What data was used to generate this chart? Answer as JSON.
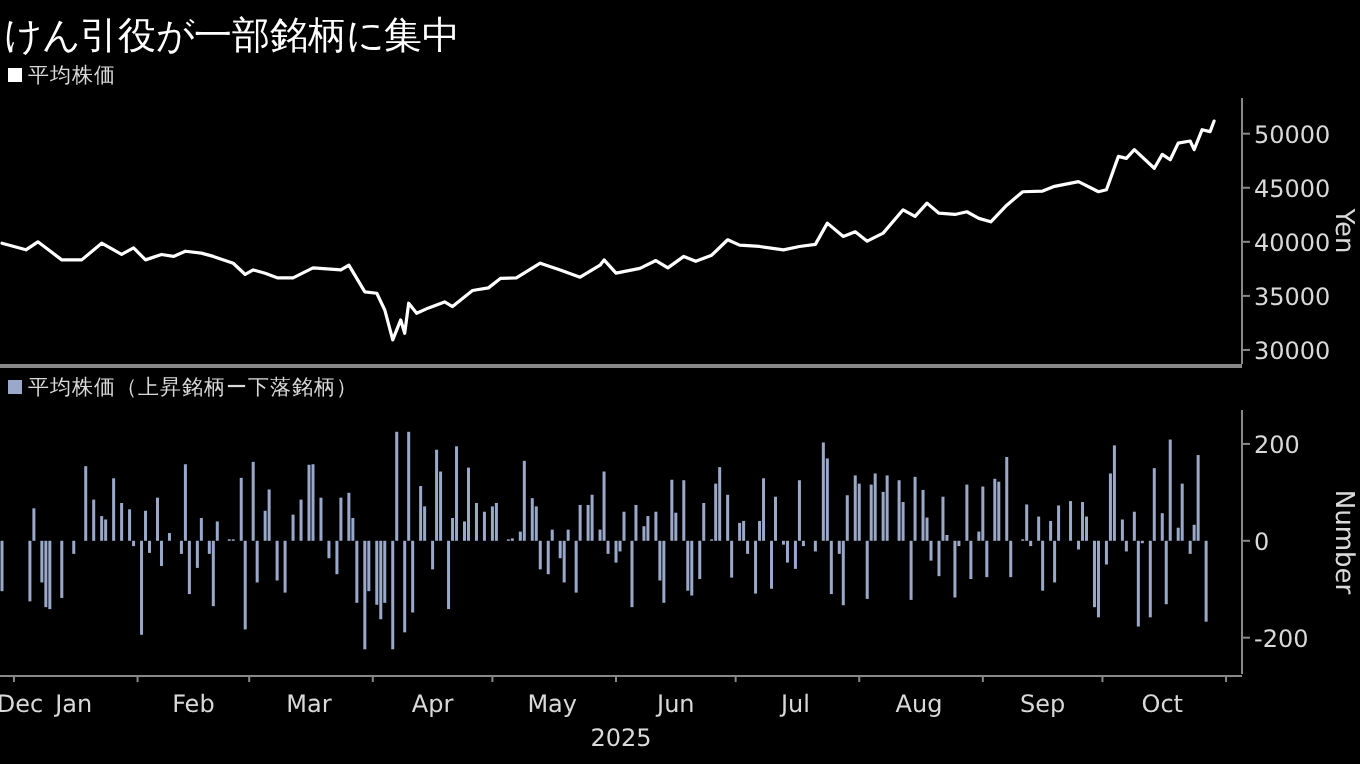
{
  "chart_data": [
    {
      "type": "line",
      "title": "けん引役が一部銘柄に集中",
      "ylabel": "Yen",
      "legend": "top left",
      "tick_labels": "y",
      "xlim": [
        "2024-12-28T12:00",
        "2025-11-05"
      ],
      "ylim": [
        28700,
        53300
      ],
      "yticks": [
        30000,
        35000,
        40000,
        45000,
        50000
      ],
      "series": [
        {
          "name": "平均株価",
          "color": "#ffffff",
          "x": [
            "2024-12-29",
            "2025-01-04",
            "2025-01-07",
            "2025-01-13",
            "2025-01-18",
            "2025-01-23",
            "2025-01-28",
            "2025-01-31",
            "2025-02-03",
            "2025-02-07",
            "2025-02-10",
            "2025-02-13",
            "2025-02-17",
            "2025-02-20",
            "2025-02-25",
            "2025-02-28",
            "2025-03-02",
            "2025-03-05",
            "2025-03-08",
            "2025-03-12",
            "2025-03-17",
            "2025-03-24",
            "2025-03-26",
            "2025-03-30",
            "2025-04-02",
            "2025-04-04",
            "2025-04-06",
            "2025-04-08",
            "2025-04-09",
            "2025-04-10",
            "2025-04-12",
            "2025-04-15",
            "2025-04-19",
            "2025-04-21",
            "2025-04-26",
            "2025-04-30",
            "2025-05-03",
            "2025-05-07",
            "2025-05-13",
            "2025-05-18",
            "2025-05-23",
            "2025-05-28",
            "2025-05-29",
            "2025-06-01",
            "2025-06-07",
            "2025-06-11",
            "2025-06-14",
            "2025-06-18",
            "2025-06-21",
            "2025-06-25",
            "2025-06-29",
            "2025-07-02",
            "2025-07-07",
            "2025-07-13",
            "2025-07-17",
            "2025-07-21",
            "2025-07-24",
            "2025-07-28",
            "2025-07-31",
            "2025-08-03",
            "2025-08-07",
            "2025-08-12",
            "2025-08-15",
            "2025-08-18",
            "2025-08-21",
            "2025-08-25",
            "2025-08-28",
            "2025-08-31",
            "2025-09-03",
            "2025-09-07",
            "2025-09-11",
            "2025-09-16",
            "2025-09-19",
            "2025-09-25",
            "2025-09-30",
            "2025-10-02",
            "2025-10-05",
            "2025-10-07",
            "2025-10-09",
            "2025-10-14",
            "2025-10-16",
            "2025-10-18",
            "2025-10-20",
            "2025-10-23",
            "2025-10-24",
            "2025-10-26",
            "2025-10-28",
            "2025-10-29"
          ],
          "values": [
            39870,
            39260,
            40000,
            38330,
            38330,
            39870,
            38830,
            39440,
            38330,
            38830,
            38650,
            39130,
            38950,
            38650,
            38020,
            36980,
            37400,
            37100,
            36670,
            36670,
            37590,
            37400,
            37840,
            35370,
            35240,
            33700,
            30930,
            32780,
            31540,
            34320,
            33390,
            33890,
            34440,
            34010,
            35500,
            35740,
            36610,
            36670,
            38020,
            37400,
            36730,
            37840,
            38330,
            37100,
            37540,
            38270,
            37590,
            38650,
            38200,
            38760,
            40190,
            39690,
            39570,
            39260,
            39570,
            39760,
            41730,
            40500,
            40930,
            40060,
            40800,
            42960,
            42350,
            43580,
            42650,
            42530,
            42780,
            42170,
            41850,
            43390,
            44630,
            44690,
            45130,
            45560,
            44630,
            44820,
            47900,
            47720,
            48520,
            46800,
            48090,
            47590,
            49130,
            49320,
            48520,
            50370,
            50190,
            51170
          ]
        }
      ]
    },
    {
      "type": "bar",
      "xlabel": "2025",
      "ylabel": "Number",
      "legend": "top left",
      "xlim": [
        "2024-12-28T12:00",
        "2025-11-05"
      ],
      "ylim": [
        -275,
        270
      ],
      "xticks": [
        {
          "value": "2024-12-30",
          "label": "Dec"
        },
        {
          "value": "2025-01-01",
          "label": null
        },
        {
          "value": "2025-01-16",
          "label": "Jan"
        },
        {
          "value": "2025-02-01",
          "label": null
        },
        {
          "value": "2025-02-15",
          "label": "Feb"
        },
        {
          "value": "2025-03-01",
          "label": null
        },
        {
          "value": "2025-03-16",
          "label": "Mar"
        },
        {
          "value": "2025-04-01",
          "label": null
        },
        {
          "value": "2025-04-16",
          "label": "Apr"
        },
        {
          "value": "2025-05-01",
          "label": null
        },
        {
          "value": "2025-05-16",
          "label": "May"
        },
        {
          "value": "2025-06-01",
          "label": null
        },
        {
          "value": "2025-06-16",
          "label": "Jun"
        },
        {
          "value": "2025-07-01",
          "label": null
        },
        {
          "value": "2025-07-16",
          "label": "Jul"
        },
        {
          "value": "2025-08-01",
          "label": null
        },
        {
          "value": "2025-08-16",
          "label": "Aug"
        },
        {
          "value": "2025-09-01",
          "label": null
        },
        {
          "value": "2025-09-16",
          "label": "Sep"
        },
        {
          "value": "2025-10-01",
          "label": null
        },
        {
          "value": "2025-10-16",
          "label": "Oct"
        },
        {
          "value": "2025-11-01",
          "label": null
        }
      ],
      "yticks": [
        -200,
        0,
        200
      ],
      "series": [
        {
          "name": "平均株価（上昇銘柄ー下落銘柄）",
          "color": "#9aa9c9",
          "x": [
            "2024-12-29",
            "2025-01-05",
            "2025-01-06",
            "2025-01-08",
            "2025-01-09",
            "2025-01-10",
            "2025-01-13",
            "2025-01-16",
            "2025-01-19",
            "2025-01-21",
            "2025-01-23",
            "2025-01-24",
            "2025-01-26",
            "2025-01-28",
            "2025-01-30",
            "2025-01-31",
            "2025-02-02",
            "2025-02-03",
            "2025-02-04",
            "2025-02-06",
            "2025-02-07",
            "2025-02-09",
            "2025-02-12",
            "2025-02-13",
            "2025-02-14",
            "2025-02-16",
            "2025-02-17",
            "2025-02-19",
            "2025-02-20",
            "2025-02-21",
            "2025-02-24",
            "2025-02-25",
            "2025-02-27",
            "2025-02-28",
            "2025-03-02",
            "2025-03-03",
            "2025-03-05",
            "2025-03-06",
            "2025-03-08",
            "2025-03-10",
            "2025-03-12",
            "2025-03-14",
            "2025-03-16",
            "2025-03-17",
            "2025-03-19",
            "2025-03-21",
            "2025-03-23",
            "2025-03-24",
            "2025-03-26",
            "2025-03-27",
            "2025-03-28",
            "2025-03-30",
            "2025-03-31",
            "2025-04-02",
            "2025-04-03",
            "2025-04-04",
            "2025-04-06",
            "2025-04-07",
            "2025-04-09",
            "2025-04-10",
            "2025-04-11",
            "2025-04-13",
            "2025-04-14",
            "2025-04-16",
            "2025-04-17",
            "2025-04-18",
            "2025-04-20",
            "2025-04-21",
            "2025-04-22",
            "2025-04-24",
            "2025-04-25",
            "2025-04-27",
            "2025-04-29",
            "2025-05-01",
            "2025-05-02",
            "2025-05-05",
            "2025-05-06",
            "2025-05-08",
            "2025-05-09",
            "2025-05-11",
            "2025-05-12",
            "2025-05-13",
            "2025-05-15",
            "2025-05-16",
            "2025-05-18",
            "2025-05-19",
            "2025-05-20",
            "2025-05-22",
            "2025-05-23",
            "2025-05-25",
            "2025-05-26",
            "2025-05-28",
            "2025-05-29",
            "2025-05-30",
            "2025-06-01",
            "2025-06-02",
            "2025-06-03",
            "2025-06-05",
            "2025-06-06",
            "2025-06-08",
            "2025-06-09",
            "2025-06-11",
            "2025-06-12",
            "2025-06-13",
            "2025-06-15",
            "2025-06-16",
            "2025-06-18",
            "2025-06-19",
            "2025-06-20",
            "2025-06-22",
            "2025-06-23",
            "2025-06-25",
            "2025-06-26",
            "2025-06-27",
            "2025-06-29",
            "2025-06-30",
            "2025-07-02",
            "2025-07-03",
            "2025-07-04",
            "2025-07-06",
            "2025-07-07",
            "2025-07-08",
            "2025-07-10",
            "2025-07-11",
            "2025-07-13",
            "2025-07-14",
            "2025-07-16",
            "2025-07-17",
            "2025-07-18",
            "2025-07-21",
            "2025-07-23",
            "2025-07-24",
            "2025-07-25",
            "2025-07-27",
            "2025-07-28",
            "2025-07-29",
            "2025-07-31",
            "2025-08-01",
            "2025-08-03",
            "2025-08-04",
            "2025-08-05",
            "2025-08-07",
            "2025-08-08",
            "2025-08-11",
            "2025-08-12",
            "2025-08-14",
            "2025-08-15",
            "2025-08-17",
            "2025-08-18",
            "2025-08-19",
            "2025-08-21",
            "2025-08-22",
            "2025-08-23",
            "2025-08-25",
            "2025-08-26",
            "2025-08-28",
            "2025-08-29",
            "2025-08-31",
            "2025-09-01",
            "2025-09-02",
            "2025-09-04",
            "2025-09-05",
            "2025-09-07",
            "2025-09-08",
            "2025-09-11",
            "2025-09-12",
            "2025-09-13",
            "2025-09-15",
            "2025-09-16",
            "2025-09-18",
            "2025-09-19",
            "2025-09-20",
            "2025-09-23",
            "2025-09-25",
            "2025-09-26",
            "2025-09-27",
            "2025-09-29",
            "2025-09-30",
            "2025-10-02",
            "2025-10-03",
            "2025-10-04",
            "2025-10-06",
            "2025-10-07",
            "2025-10-09",
            "2025-10-10",
            "2025-10-11",
            "2025-10-13",
            "2025-10-14",
            "2025-10-16",
            "2025-10-17",
            "2025-10-18",
            "2025-10-20",
            "2025-10-21",
            "2025-10-23",
            "2025-10-24",
            "2025-10-25",
            "2025-10-27"
          ],
          "values": [
            -104,
            -125,
            67,
            -86,
            -137,
            -141,
            -118,
            -27,
            154,
            85,
            51,
            44,
            129,
            78,
            65,
            -11,
            -194,
            62,
            -25,
            89,
            -52,
            16,
            -27,
            158,
            -110,
            -56,
            47,
            -27,
            -135,
            40,
            3,
            3,
            130,
            -183,
            163,
            -86,
            62,
            106,
            -82,
            -107,
            54,
            85,
            157,
            158,
            89,
            -36,
            -69,
            89,
            99,
            47,
            -128,
            -224,
            -104,
            -132,
            -162,
            -128,
            -224,
            225,
            -189,
            225,
            -148,
            113,
            71,
            -59,
            188,
            143,
            -141,
            47,
            195,
            40,
            151,
            78,
            60,
            71,
            78,
            3,
            5,
            19,
            165,
            88,
            71,
            -59,
            -69,
            23,
            -36,
            -86,
            23,
            -107,
            74,
            74,
            95,
            23,
            143,
            -27,
            -45,
            -22,
            60,
            -137,
            74,
            30,
            51,
            60,
            -82,
            -128,
            126,
            58,
            125,
            -103,
            -113,
            -79,
            78,
            3,
            118,
            152,
            95,
            -76,
            37,
            41,
            -27,
            -109,
            41,
            129,
            -99,
            91,
            -8,
            -45,
            -58,
            125,
            -11,
            -22,
            203,
            170,
            -110,
            -27,
            -133,
            94,
            135,
            118,
            -120,
            116,
            139,
            101,
            135,
            125,
            80,
            -122,
            132,
            105,
            48,
            -41,
            -73,
            91,
            12,
            -117,
            -11,
            116,
            -79,
            19,
            112,
            -75,
            128,
            122,
            173,
            -75,
            3,
            75,
            -11,
            50,
            -103,
            41,
            -86,
            73,
            82,
            -18,
            80,
            50,
            -137,
            -158,
            -49,
            139,
            197,
            44,
            -22,
            60,
            -177,
            -5,
            -158,
            150,
            57,
            -131,
            209,
            27,
            118,
            -27,
            33,
            177,
            -167
          ]
        }
      ]
    }
  ]
}
